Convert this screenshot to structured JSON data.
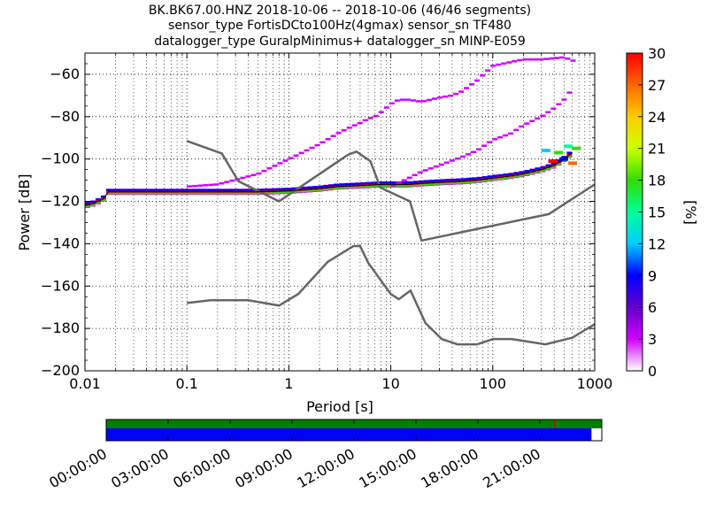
{
  "chart_data": [
    {
      "type": "heatmap",
      "title_lines": [
        "BK.BK67.00.HNZ   2018-10-06 -- 2018-10-06  (46/46 segments)",
        "sensor_type FortisDCto100Hz(4gmax) sensor_sn TF480",
        "datalogger_type GuralpMinimus+ datalogger_sn MINP-E059"
      ],
      "xlabel": "Period [s]",
      "ylabel": "Power [dB]",
      "xscale": "log",
      "xlim": [
        0.01,
        1000
      ],
      "ylim": [
        -200,
        -50
      ],
      "x_ticks": [
        0.01,
        0.1,
        1,
        10,
        100,
        1000
      ],
      "x_tick_labels": [
        "0.01",
        "0.1",
        "1",
        "10",
        "100",
        "1000"
      ],
      "y_ticks": [
        -200,
        -180,
        -160,
        -140,
        -120,
        -100,
        -80,
        -60
      ],
      "y_tick_labels": [
        "−200",
        "−180",
        "−160",
        "−140",
        "−120",
        "−100",
        "−80",
        "−60"
      ],
      "grid": true,
      "colorbar": {
        "label": "[%]",
        "range": [
          0,
          30
        ],
        "ticks": [
          0,
          3,
          6,
          9,
          12,
          15,
          18,
          21,
          24,
          27,
          30
        ],
        "tick_labels": [
          "0",
          "3",
          "6",
          "9",
          "12",
          "15",
          "18",
          "21",
          "24",
          "27",
          "30"
        ],
        "colormap": "pqlx"
      },
      "noise_models": [
        {
          "name": "high",
          "x": [
            0.1,
            0.22,
            0.32,
            0.8,
            3.8,
            4.6,
            6.3,
            7.9,
            15.4,
            20,
            354.8,
            1000
          ],
          "y": [
            -91.5,
            -97.4,
            -110.5,
            -120,
            -98,
            -96.5,
            -101,
            -113.5,
            -120,
            -138.5,
            -126,
            -112
          ]
        },
        {
          "name": "low",
          "x": [
            0.1,
            0.17,
            0.4,
            0.8,
            1.24,
            2.4,
            4.3,
            5,
            6,
            10,
            12,
            15.6,
            21.9,
            31.6,
            45,
            70,
            101,
            154,
            328,
            600,
            1000
          ],
          "y": [
            -168,
            -166.7,
            -166.7,
            -169.2,
            -163.7,
            -148.6,
            -141.1,
            -141.1,
            -149,
            -163.8,
            -166.2,
            -162.1,
            -177.5,
            -185,
            -187.5,
            -187.5,
            -185,
            -185,
            -187.5,
            -184.4,
            -178
          ]
        }
      ],
      "mode_curve": {
        "x": [
          0.01,
          0.012,
          0.015,
          0.017,
          0.05,
          0.2,
          0.5,
          1,
          2,
          3,
          5,
          8,
          10,
          15,
          20,
          30,
          50,
          70,
          100,
          150,
          200,
          300,
          400,
          500,
          600
        ],
        "y": [
          -122,
          -121,
          -119,
          -115.5,
          -115.5,
          -115.5,
          -115.5,
          -115,
          -114,
          -113,
          -112.5,
          -112,
          -112,
          -112,
          -111.5,
          -111,
          -110.5,
          -110,
          -109,
          -108,
          -107,
          -105,
          -103,
          -100,
          -97
        ]
      },
      "upper_tail": {
        "x": [
          0.1,
          0.2,
          0.5,
          1,
          2,
          3,
          4,
          5,
          6,
          7,
          8,
          10,
          12,
          15,
          20,
          30,
          40,
          50,
          70,
          100,
          200,
          300,
          500,
          650
        ],
        "y": [
          -113,
          -112,
          -107,
          -100,
          -93,
          -88,
          -85,
          -83,
          -81,
          -80,
          -78,
          -74,
          -72,
          -72,
          -73,
          -71,
          -70,
          -68,
          -63,
          -56,
          -53,
          -53,
          -52,
          -54
        ]
      },
      "second_tail": {
        "x": [
          10,
          15,
          20,
          30,
          50,
          70,
          100,
          150,
          200,
          300,
          400,
          500,
          600
        ],
        "y": [
          -113,
          -109,
          -106,
          -103,
          -99,
          -96,
          -91,
          -88,
          -84,
          -80,
          -76,
          -72,
          -67
        ]
      }
    },
    {
      "type": "timeline",
      "x_ticks": [
        "00:00:00",
        "03:00:00",
        "06:00:00",
        "09:00:00",
        "12:00:00",
        "15:00:00",
        "18:00:00",
        "21:00:00"
      ],
      "time_range_hours": [
        0,
        24
      ],
      "bars": [
        {
          "color": "#008000",
          "start_hours": 0,
          "end_hours": 24
        },
        {
          "color": "#0000ff",
          "start_hours": 0,
          "end_hours": 23.5
        }
      ],
      "marker_hours": 21.7
    }
  ]
}
